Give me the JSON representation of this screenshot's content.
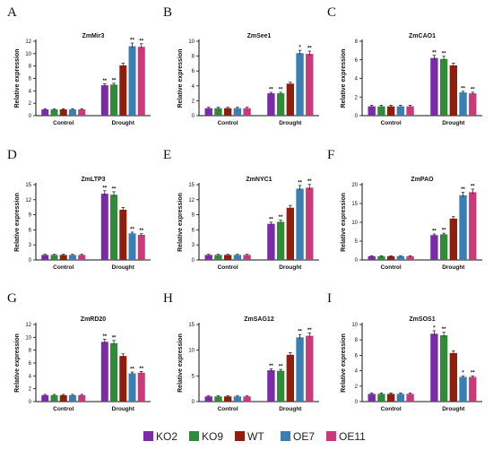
{
  "colors": {
    "KO2": "#7a2ba8",
    "KO9": "#2f8a3a",
    "WT": "#8e1f0e",
    "OE7": "#3a7fb3",
    "OE11": "#c93a7a"
  },
  "legend": {
    "items": [
      {
        "name": "KO2",
        "color": "#7a2ba8"
      },
      {
        "name": "KO9",
        "color": "#2f8a3a"
      },
      {
        "name": "WT",
        "color": "#8e1f0e"
      },
      {
        "name": "OE7",
        "color": "#3a7fb3"
      },
      {
        "name": "OE11",
        "color": "#c93a7a"
      }
    ]
  },
  "chart_data": [
    {
      "panel": "A",
      "type": "bar",
      "title": "ZmMir3",
      "ylabel": "Relative expression",
      "ylim": [
        0,
        12
      ],
      "yticks": [
        0,
        2,
        4,
        6,
        8,
        10,
        12
      ],
      "categories": [
        "Control",
        "Drought"
      ],
      "series": [
        {
          "name": "KO2",
          "values": [
            1.0,
            4.9
          ],
          "sig": [
            "",
            "**"
          ]
        },
        {
          "name": "KO9",
          "values": [
            1.0,
            5.0
          ],
          "sig": [
            "",
            "**"
          ]
        },
        {
          "name": "WT",
          "values": [
            1.0,
            8.1
          ],
          "sig": [
            "",
            ""
          ]
        },
        {
          "name": "OE7",
          "values": [
            1.0,
            11.2
          ],
          "sig": [
            "",
            "**"
          ]
        },
        {
          "name": "OE11",
          "values": [
            1.0,
            11.1
          ],
          "sig": [
            "",
            "**"
          ]
        }
      ]
    },
    {
      "panel": "B",
      "type": "bar",
      "title": "ZmSee1",
      "ylabel": "Relative expression",
      "ylim": [
        0,
        10
      ],
      "yticks": [
        0,
        2,
        4,
        6,
        8,
        10
      ],
      "categories": [
        "Control",
        "Drought"
      ],
      "series": [
        {
          "name": "KO2",
          "values": [
            1.0,
            3.0
          ],
          "sig": [
            "",
            "**"
          ]
        },
        {
          "name": "KO9",
          "values": [
            1.0,
            3.0
          ],
          "sig": [
            "",
            "**"
          ]
        },
        {
          "name": "WT",
          "values": [
            1.0,
            4.3
          ],
          "sig": [
            "",
            ""
          ]
        },
        {
          "name": "OE7",
          "values": [
            1.0,
            8.4
          ],
          "sig": [
            "",
            "*"
          ]
        },
        {
          "name": "OE11",
          "values": [
            1.0,
            8.3
          ],
          "sig": [
            "",
            "**"
          ]
        }
      ]
    },
    {
      "panel": "C",
      "type": "bar",
      "title": "ZmCAO1",
      "ylabel": "Relative expression",
      "ylim": [
        0,
        8
      ],
      "yticks": [
        0,
        2,
        4,
        6,
        8
      ],
      "categories": [
        "Control",
        "Drought"
      ],
      "series": [
        {
          "name": "KO2",
          "values": [
            1.0,
            6.2
          ],
          "sig": [
            "",
            "**"
          ]
        },
        {
          "name": "KO9",
          "values": [
            1.0,
            6.1
          ],
          "sig": [
            "",
            "**"
          ]
        },
        {
          "name": "WT",
          "values": [
            1.0,
            5.4
          ],
          "sig": [
            "",
            ""
          ]
        },
        {
          "name": "OE7",
          "values": [
            1.0,
            2.5
          ],
          "sig": [
            "",
            "**"
          ]
        },
        {
          "name": "OE11",
          "values": [
            1.0,
            2.4
          ],
          "sig": [
            "",
            "**"
          ]
        }
      ]
    },
    {
      "panel": "D",
      "type": "bar",
      "title": "ZmLTP3",
      "ylabel": "Relative expression",
      "ylim": [
        0,
        15
      ],
      "yticks": [
        0,
        3,
        6,
        9,
        12,
        15
      ],
      "categories": [
        "Control",
        "Drought"
      ],
      "series": [
        {
          "name": "KO2",
          "values": [
            1.0,
            13.2
          ],
          "sig": [
            "",
            "**"
          ]
        },
        {
          "name": "KO9",
          "values": [
            1.0,
            13.0
          ],
          "sig": [
            "",
            "**"
          ]
        },
        {
          "name": "WT",
          "values": [
            1.0,
            10.0
          ],
          "sig": [
            "",
            ""
          ]
        },
        {
          "name": "OE7",
          "values": [
            1.0,
            5.3
          ],
          "sig": [
            "",
            "**"
          ]
        },
        {
          "name": "OE11",
          "values": [
            1.0,
            5.0
          ],
          "sig": [
            "",
            "**"
          ]
        }
      ]
    },
    {
      "panel": "E",
      "type": "bar",
      "title": "ZmNYC1",
      "ylabel": "Relative expression",
      "ylim": [
        0,
        15
      ],
      "yticks": [
        0,
        3,
        6,
        9,
        12,
        15
      ],
      "categories": [
        "Control",
        "Drought"
      ],
      "series": [
        {
          "name": "KO2",
          "values": [
            1.0,
            7.2
          ],
          "sig": [
            "",
            "**"
          ]
        },
        {
          "name": "KO9",
          "values": [
            1.0,
            7.6
          ],
          "sig": [
            "",
            "**"
          ]
        },
        {
          "name": "WT",
          "values": [
            1.0,
            10.4
          ],
          "sig": [
            "",
            ""
          ]
        },
        {
          "name": "OE7",
          "values": [
            1.0,
            14.2
          ],
          "sig": [
            "",
            "**"
          ]
        },
        {
          "name": "OE11",
          "values": [
            1.0,
            14.4
          ],
          "sig": [
            "",
            "**"
          ]
        }
      ]
    },
    {
      "panel": "F",
      "type": "bar",
      "title": "ZmPAO",
      "ylabel": "Relative expression",
      "ylim": [
        0,
        20
      ],
      "yticks": [
        0,
        5,
        10,
        15,
        20
      ],
      "categories": [
        "Control",
        "Drought"
      ],
      "series": [
        {
          "name": "KO2",
          "values": [
            1.0,
            6.6
          ],
          "sig": [
            "",
            "**"
          ]
        },
        {
          "name": "KO9",
          "values": [
            1.0,
            6.8
          ],
          "sig": [
            "",
            "**"
          ]
        },
        {
          "name": "WT",
          "values": [
            1.0,
            11.0
          ],
          "sig": [
            "",
            ""
          ]
        },
        {
          "name": "OE7",
          "values": [
            1.0,
            17.2
          ],
          "sig": [
            "",
            "**"
          ]
        },
        {
          "name": "OE11",
          "values": [
            1.0,
            18.0
          ],
          "sig": [
            "",
            "**"
          ]
        }
      ]
    },
    {
      "panel": "G",
      "type": "bar",
      "title": "ZmRD20",
      "ylabel": "Relative expression",
      "ylim": [
        0,
        12
      ],
      "yticks": [
        0,
        2,
        4,
        6,
        8,
        10,
        12
      ],
      "categories": [
        "Control",
        "Drought"
      ],
      "series": [
        {
          "name": "KO2",
          "values": [
            1.0,
            9.3
          ],
          "sig": [
            "",
            "**"
          ]
        },
        {
          "name": "KO9",
          "values": [
            1.0,
            9.1
          ],
          "sig": [
            "",
            "**"
          ]
        },
        {
          "name": "WT",
          "values": [
            1.0,
            7.1
          ],
          "sig": [
            "",
            ""
          ]
        },
        {
          "name": "OE7",
          "values": [
            1.0,
            4.4
          ],
          "sig": [
            "",
            "**"
          ]
        },
        {
          "name": "OE11",
          "values": [
            1.0,
            4.5
          ],
          "sig": [
            "",
            "**"
          ]
        }
      ]
    },
    {
      "panel": "H",
      "type": "bar",
      "title": "ZmSAG12",
      "ylabel": "Relative expression",
      "ylim": [
        0,
        15
      ],
      "yticks": [
        0,
        5,
        10,
        15
      ],
      "categories": [
        "Control",
        "Drought"
      ],
      "series": [
        {
          "name": "KO2",
          "values": [
            1.0,
            6.1
          ],
          "sig": [
            "",
            "**"
          ]
        },
        {
          "name": "KO9",
          "values": [
            1.0,
            6.0
          ],
          "sig": [
            "",
            "**"
          ]
        },
        {
          "name": "WT",
          "values": [
            1.0,
            9.1
          ],
          "sig": [
            "",
            ""
          ]
        },
        {
          "name": "OE7",
          "values": [
            1.0,
            12.5
          ],
          "sig": [
            "",
            "**"
          ]
        },
        {
          "name": "OE11",
          "values": [
            1.0,
            12.8
          ],
          "sig": [
            "",
            "**"
          ]
        }
      ]
    },
    {
      "panel": "I",
      "type": "bar",
      "title": "ZmSOS1",
      "ylabel": "Relative expression",
      "ylim": [
        0,
        10
      ],
      "yticks": [
        0,
        2,
        4,
        6,
        8,
        10
      ],
      "categories": [
        "Control",
        "Drought"
      ],
      "series": [
        {
          "name": "KO2",
          "values": [
            1.0,
            8.8
          ],
          "sig": [
            "",
            "*"
          ]
        },
        {
          "name": "KO9",
          "values": [
            1.0,
            8.6
          ],
          "sig": [
            "",
            "**"
          ]
        },
        {
          "name": "WT",
          "values": [
            1.0,
            6.3
          ],
          "sig": [
            "",
            ""
          ]
        },
        {
          "name": "OE7",
          "values": [
            1.0,
            3.2
          ],
          "sig": [
            "",
            "*"
          ]
        },
        {
          "name": "OE11",
          "values": [
            1.0,
            3.2
          ],
          "sig": [
            "",
            "**"
          ]
        }
      ]
    }
  ]
}
